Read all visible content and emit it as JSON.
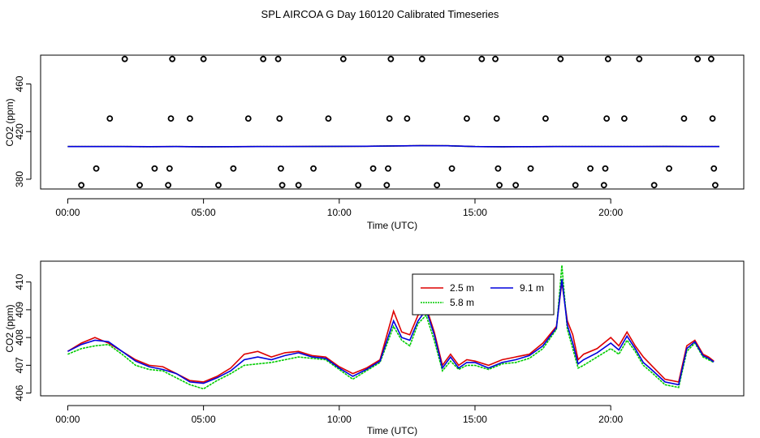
{
  "figure_title": "SPL AIRCOA G  Day 160120  Calibrated Timeseries",
  "colors": {
    "r": "#dd0000",
    "g": "#00cc00",
    "b": "#0000dd"
  },
  "chart_data": [
    {
      "type": "line",
      "xlabel": "Time (UTC)",
      "ylabel": "CO2 (ppm)",
      "xlim": [
        -1.0,
        24.9
      ],
      "ylim": [
        371.8,
        484.2
      ],
      "xticks": [
        {
          "v": 0,
          "label": "00:00"
        },
        {
          "v": 5,
          "label": "05:00"
        },
        {
          "v": 10,
          "label": "10:00"
        },
        {
          "v": 15,
          "label": "15:00"
        },
        {
          "v": 20,
          "label": "20:00"
        }
      ],
      "yticks": [
        {
          "v": 380,
          "label": "380"
        },
        {
          "v": 420,
          "label": "420"
        },
        {
          "v": 460,
          "label": "460"
        }
      ],
      "markers": [
        {
          "x": 0.5,
          "y": 375
        },
        {
          "x": 1.05,
          "y": 389
        },
        {
          "x": 1.55,
          "y": 431
        },
        {
          "x": 2.1,
          "y": 481
        },
        {
          "x": 2.65,
          "y": 375
        },
        {
          "x": 3.2,
          "y": 389
        },
        {
          "x": 3.7,
          "y": 375
        },
        {
          "x": 3.75,
          "y": 389
        },
        {
          "x": 3.8,
          "y": 431
        },
        {
          "x": 3.85,
          "y": 481
        },
        {
          "x": 4.5,
          "y": 431
        },
        {
          "x": 5.0,
          "y": 481
        },
        {
          "x": 5.55,
          "y": 375
        },
        {
          "x": 6.1,
          "y": 389
        },
        {
          "x": 6.65,
          "y": 431
        },
        {
          "x": 7.2,
          "y": 481
        },
        {
          "x": 7.75,
          "y": 481
        },
        {
          "x": 7.8,
          "y": 431
        },
        {
          "x": 7.85,
          "y": 389
        },
        {
          "x": 7.9,
          "y": 375
        },
        {
          "x": 8.5,
          "y": 375
        },
        {
          "x": 9.05,
          "y": 389
        },
        {
          "x": 9.6,
          "y": 431
        },
        {
          "x": 10.15,
          "y": 481
        },
        {
          "x": 10.7,
          "y": 375
        },
        {
          "x": 11.25,
          "y": 389
        },
        {
          "x": 11.75,
          "y": 375
        },
        {
          "x": 11.8,
          "y": 389
        },
        {
          "x": 11.85,
          "y": 431
        },
        {
          "x": 11.9,
          "y": 481
        },
        {
          "x": 12.5,
          "y": 431
        },
        {
          "x": 13.05,
          "y": 481
        },
        {
          "x": 13.6,
          "y": 375
        },
        {
          "x": 14.15,
          "y": 389
        },
        {
          "x": 14.7,
          "y": 431
        },
        {
          "x": 15.25,
          "y": 481
        },
        {
          "x": 15.75,
          "y": 481
        },
        {
          "x": 15.8,
          "y": 431
        },
        {
          "x": 15.85,
          "y": 389
        },
        {
          "x": 15.9,
          "y": 375
        },
        {
          "x": 16.5,
          "y": 375
        },
        {
          "x": 17.05,
          "y": 389
        },
        {
          "x": 17.6,
          "y": 431
        },
        {
          "x": 18.15,
          "y": 481
        },
        {
          "x": 18.7,
          "y": 375
        },
        {
          "x": 19.25,
          "y": 389
        },
        {
          "x": 19.75,
          "y": 375
        },
        {
          "x": 19.8,
          "y": 389
        },
        {
          "x": 19.85,
          "y": 431
        },
        {
          "x": 19.9,
          "y": 481
        },
        {
          "x": 20.5,
          "y": 431
        },
        {
          "x": 21.05,
          "y": 481
        },
        {
          "x": 21.6,
          "y": 375
        },
        {
          "x": 22.15,
          "y": 389
        },
        {
          "x": 22.7,
          "y": 431
        },
        {
          "x": 23.2,
          "y": 481
        },
        {
          "x": 23.7,
          "y": 481
        },
        {
          "x": 23.75,
          "y": 431
        },
        {
          "x": 23.8,
          "y": 389
        },
        {
          "x": 23.85,
          "y": 375
        }
      ],
      "series": [
        {
          "name": "2.5 m",
          "color": "#dd0000",
          "y": [
            407.4,
            407.45,
            407.4,
            407.35,
            407.4,
            407.3,
            407.35,
            407.4,
            407.45,
            407.5,
            407.6,
            407.7,
            408.0,
            408.2,
            408.1,
            407.4,
            407.3,
            407.35,
            407.45,
            407.4,
            407.4,
            407.4,
            407.5,
            407.4,
            407.4
          ]
        },
        {
          "name": "5.8 m",
          "color": "#00cc00",
          "y": [
            407.4,
            407.45,
            407.4,
            407.35,
            407.4,
            407.3,
            407.35,
            407.4,
            407.45,
            407.5,
            407.6,
            407.7,
            408.0,
            408.2,
            408.1,
            407.4,
            407.3,
            407.35,
            407.45,
            407.4,
            407.4,
            407.4,
            407.5,
            407.4,
            407.4
          ]
        },
        {
          "name": "9.1 m",
          "color": "#0000dd",
          "y": [
            407.4,
            407.45,
            407.4,
            407.35,
            407.4,
            407.3,
            407.35,
            407.4,
            407.45,
            407.5,
            407.6,
            407.7,
            408.0,
            408.2,
            408.1,
            407.4,
            407.3,
            407.35,
            407.45,
            407.4,
            407.4,
            407.4,
            407.5,
            407.4,
            407.4
          ]
        }
      ]
    },
    {
      "type": "line",
      "xlabel": "Time (UTC)",
      "ylabel": "CO2 (ppm)",
      "xlim": [
        -1.0,
        24.9
      ],
      "ylim": [
        405.9,
        410.75
      ],
      "xticks": [
        {
          "v": 0,
          "label": "00:00"
        },
        {
          "v": 5,
          "label": "05:00"
        },
        {
          "v": 10,
          "label": "10:00"
        },
        {
          "v": 15,
          "label": "15:00"
        },
        {
          "v": 20,
          "label": "20:00"
        }
      ],
      "yticks": [
        {
          "v": 406,
          "label": "406"
        },
        {
          "v": 407,
          "label": "407"
        },
        {
          "v": 408,
          "label": "408"
        },
        {
          "v": 409,
          "label": "409"
        },
        {
          "v": 410,
          "label": "410"
        }
      ],
      "legend": {
        "position": "top-center",
        "entries": [
          "2.5 m",
          "9.1 m",
          "5.8 m"
        ]
      },
      "series": [
        {
          "name": "2.5 m",
          "color": "#dd0000",
          "x": [
            0.0,
            0.5,
            1.0,
            1.5,
            2.0,
            2.5,
            3.0,
            3.5,
            4.0,
            4.5,
            5.0,
            5.5,
            6.0,
            6.5,
            7.0,
            7.5,
            8.0,
            8.5,
            9.0,
            9.5,
            10.0,
            10.5,
            11.0,
            11.5,
            12.0,
            12.3,
            12.6,
            12.9,
            13.2,
            13.5,
            13.8,
            14.1,
            14.4,
            14.7,
            15.0,
            15.5,
            16.0,
            16.5,
            17.0,
            17.5,
            18.0,
            18.2,
            18.4,
            18.6,
            18.8,
            19.0,
            19.5,
            20.0,
            20.3,
            20.6,
            20.9,
            21.2,
            21.5,
            22.0,
            22.5,
            22.8,
            23.1,
            23.4,
            23.6,
            23.8
          ],
          "y": [
            407.5,
            407.8,
            408.0,
            407.8,
            407.5,
            407.2,
            407.0,
            406.95,
            406.7,
            406.45,
            406.4,
            406.6,
            406.9,
            407.4,
            407.5,
            407.3,
            407.45,
            407.5,
            407.35,
            407.3,
            406.95,
            406.7,
            406.9,
            407.2,
            408.95,
            408.2,
            408.1,
            408.8,
            409.1,
            408.2,
            407.0,
            407.4,
            407.0,
            407.2,
            407.15,
            407.0,
            407.2,
            407.3,
            407.4,
            407.8,
            408.4,
            410.0,
            408.6,
            408.1,
            407.2,
            407.4,
            407.6,
            408.0,
            407.7,
            408.2,
            407.7,
            407.3,
            407.0,
            406.5,
            406.4,
            407.7,
            407.9,
            407.4,
            407.3,
            407.15
          ]
        },
        {
          "name": "5.8 m",
          "color": "#00cc00",
          "x": [
            0.0,
            0.5,
            1.0,
            1.5,
            2.0,
            2.5,
            3.0,
            3.5,
            4.0,
            4.5,
            5.0,
            5.5,
            6.0,
            6.5,
            7.0,
            7.5,
            8.0,
            8.5,
            9.0,
            9.5,
            10.0,
            10.5,
            11.0,
            11.5,
            12.0,
            12.3,
            12.6,
            12.9,
            13.2,
            13.5,
            13.8,
            14.1,
            14.4,
            14.7,
            15.0,
            15.5,
            16.0,
            16.5,
            17.0,
            17.5,
            18.0,
            18.2,
            18.4,
            18.6,
            18.8,
            19.0,
            19.5,
            20.0,
            20.3,
            20.6,
            20.9,
            21.2,
            21.5,
            22.0,
            22.5,
            22.8,
            23.1,
            23.4,
            23.6,
            23.8
          ],
          "y": [
            407.4,
            407.6,
            407.7,
            407.75,
            407.4,
            407.0,
            406.85,
            406.8,
            406.55,
            406.3,
            406.15,
            406.45,
            406.7,
            407.0,
            407.05,
            407.1,
            407.2,
            407.3,
            407.25,
            407.2,
            406.85,
            406.5,
            406.8,
            407.1,
            408.4,
            407.9,
            407.7,
            408.5,
            408.8,
            407.9,
            406.8,
            407.15,
            406.85,
            407.0,
            407.0,
            406.85,
            407.05,
            407.1,
            407.25,
            407.6,
            408.3,
            410.6,
            408.3,
            407.6,
            406.9,
            407.0,
            407.3,
            407.6,
            407.4,
            407.9,
            407.5,
            407.0,
            406.75,
            406.3,
            406.2,
            407.5,
            407.8,
            407.3,
            407.2,
            407.1
          ]
        },
        {
          "name": "9.1 m",
          "color": "#0000dd",
          "x": [
            0.0,
            0.5,
            1.0,
            1.5,
            2.0,
            2.5,
            3.0,
            3.5,
            4.0,
            4.5,
            5.0,
            5.5,
            6.0,
            6.5,
            7.0,
            7.5,
            8.0,
            8.5,
            9.0,
            9.5,
            10.0,
            10.5,
            11.0,
            11.5,
            12.0,
            12.3,
            12.6,
            12.9,
            13.2,
            13.5,
            13.8,
            14.1,
            14.4,
            14.7,
            15.0,
            15.5,
            16.0,
            16.5,
            17.0,
            17.5,
            18.0,
            18.2,
            18.4,
            18.6,
            18.8,
            19.0,
            19.5,
            20.0,
            20.3,
            20.6,
            20.9,
            21.2,
            21.5,
            22.0,
            22.5,
            22.8,
            23.1,
            23.4,
            23.6,
            23.8
          ],
          "y": [
            407.5,
            407.75,
            407.9,
            407.85,
            407.5,
            407.15,
            406.95,
            406.85,
            406.7,
            406.4,
            406.35,
            406.55,
            406.8,
            407.2,
            407.3,
            407.2,
            407.35,
            407.45,
            407.3,
            407.25,
            406.9,
            406.6,
            406.85,
            407.15,
            408.6,
            408.0,
            407.9,
            408.6,
            409.0,
            408.1,
            406.9,
            407.3,
            406.9,
            407.1,
            407.1,
            406.9,
            407.1,
            407.2,
            407.35,
            407.7,
            408.35,
            410.1,
            408.45,
            407.8,
            407.05,
            407.2,
            407.45,
            407.8,
            407.55,
            408.05,
            407.6,
            407.1,
            406.85,
            406.4,
            406.3,
            407.6,
            407.85,
            407.35,
            407.25,
            407.12
          ]
        }
      ]
    }
  ]
}
